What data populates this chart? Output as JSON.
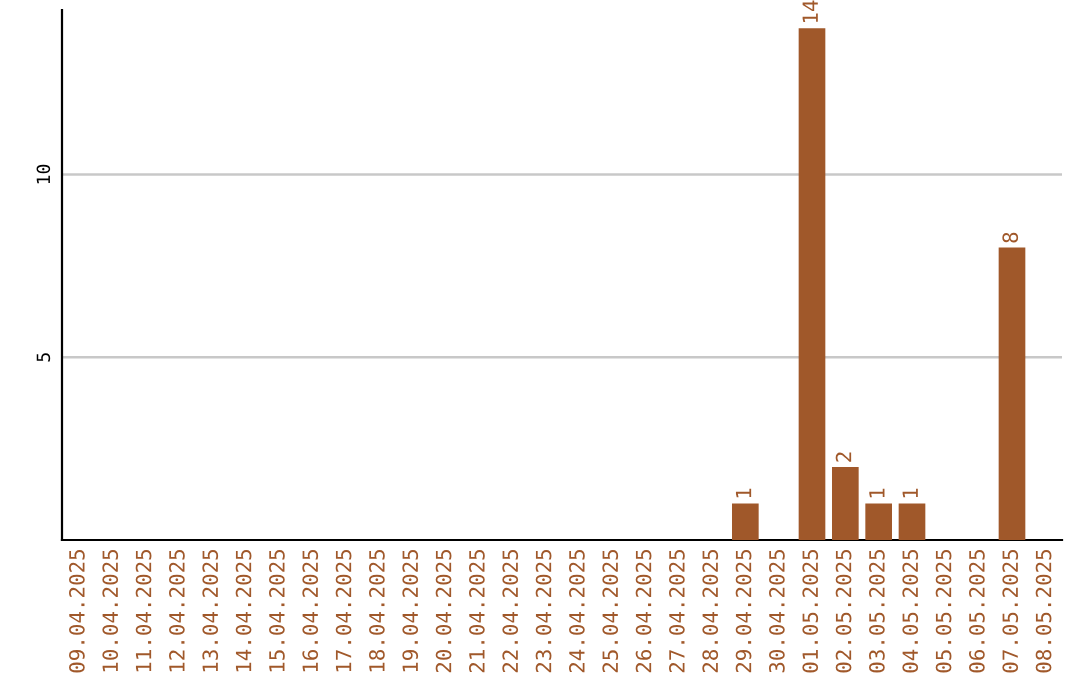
{
  "chart_data": {
    "type": "bar",
    "categories": [
      "09.04.2025",
      "10.04.2025",
      "11.04.2025",
      "12.04.2025",
      "13.04.2025",
      "14.04.2025",
      "15.04.2025",
      "16.04.2025",
      "17.04.2025",
      "18.04.2025",
      "19.04.2025",
      "20.04.2025",
      "21.04.2025",
      "22.04.2025",
      "23.04.2025",
      "24.04.2025",
      "25.04.2025",
      "26.04.2025",
      "27.04.2025",
      "28.04.2025",
      "29.04.2025",
      "30.04.2025",
      "01.05.2025",
      "02.05.2025",
      "03.05.2025",
      "04.05.2025",
      "05.05.2025",
      "06.05.2025",
      "07.05.2025",
      "08.05.2025"
    ],
    "values": [
      0,
      0,
      0,
      0,
      0,
      0,
      0,
      0,
      0,
      0,
      0,
      0,
      0,
      0,
      0,
      0,
      0,
      0,
      0,
      0,
      1,
      0,
      14,
      2,
      1,
      1,
      0,
      0,
      8,
      0
    ],
    "value_labels": [
      null,
      null,
      null,
      null,
      null,
      null,
      null,
      null,
      null,
      null,
      null,
      null,
      null,
      null,
      null,
      null,
      null,
      null,
      null,
      null,
      "1",
      null,
      "14",
      "2",
      "1",
      "1",
      null,
      null,
      "8",
      null
    ],
    "color": "#a0582a",
    "ylim": [
      0,
      14.5
    ],
    "yticks": [
      5,
      10
    ],
    "grid": "y",
    "legend": false
  }
}
